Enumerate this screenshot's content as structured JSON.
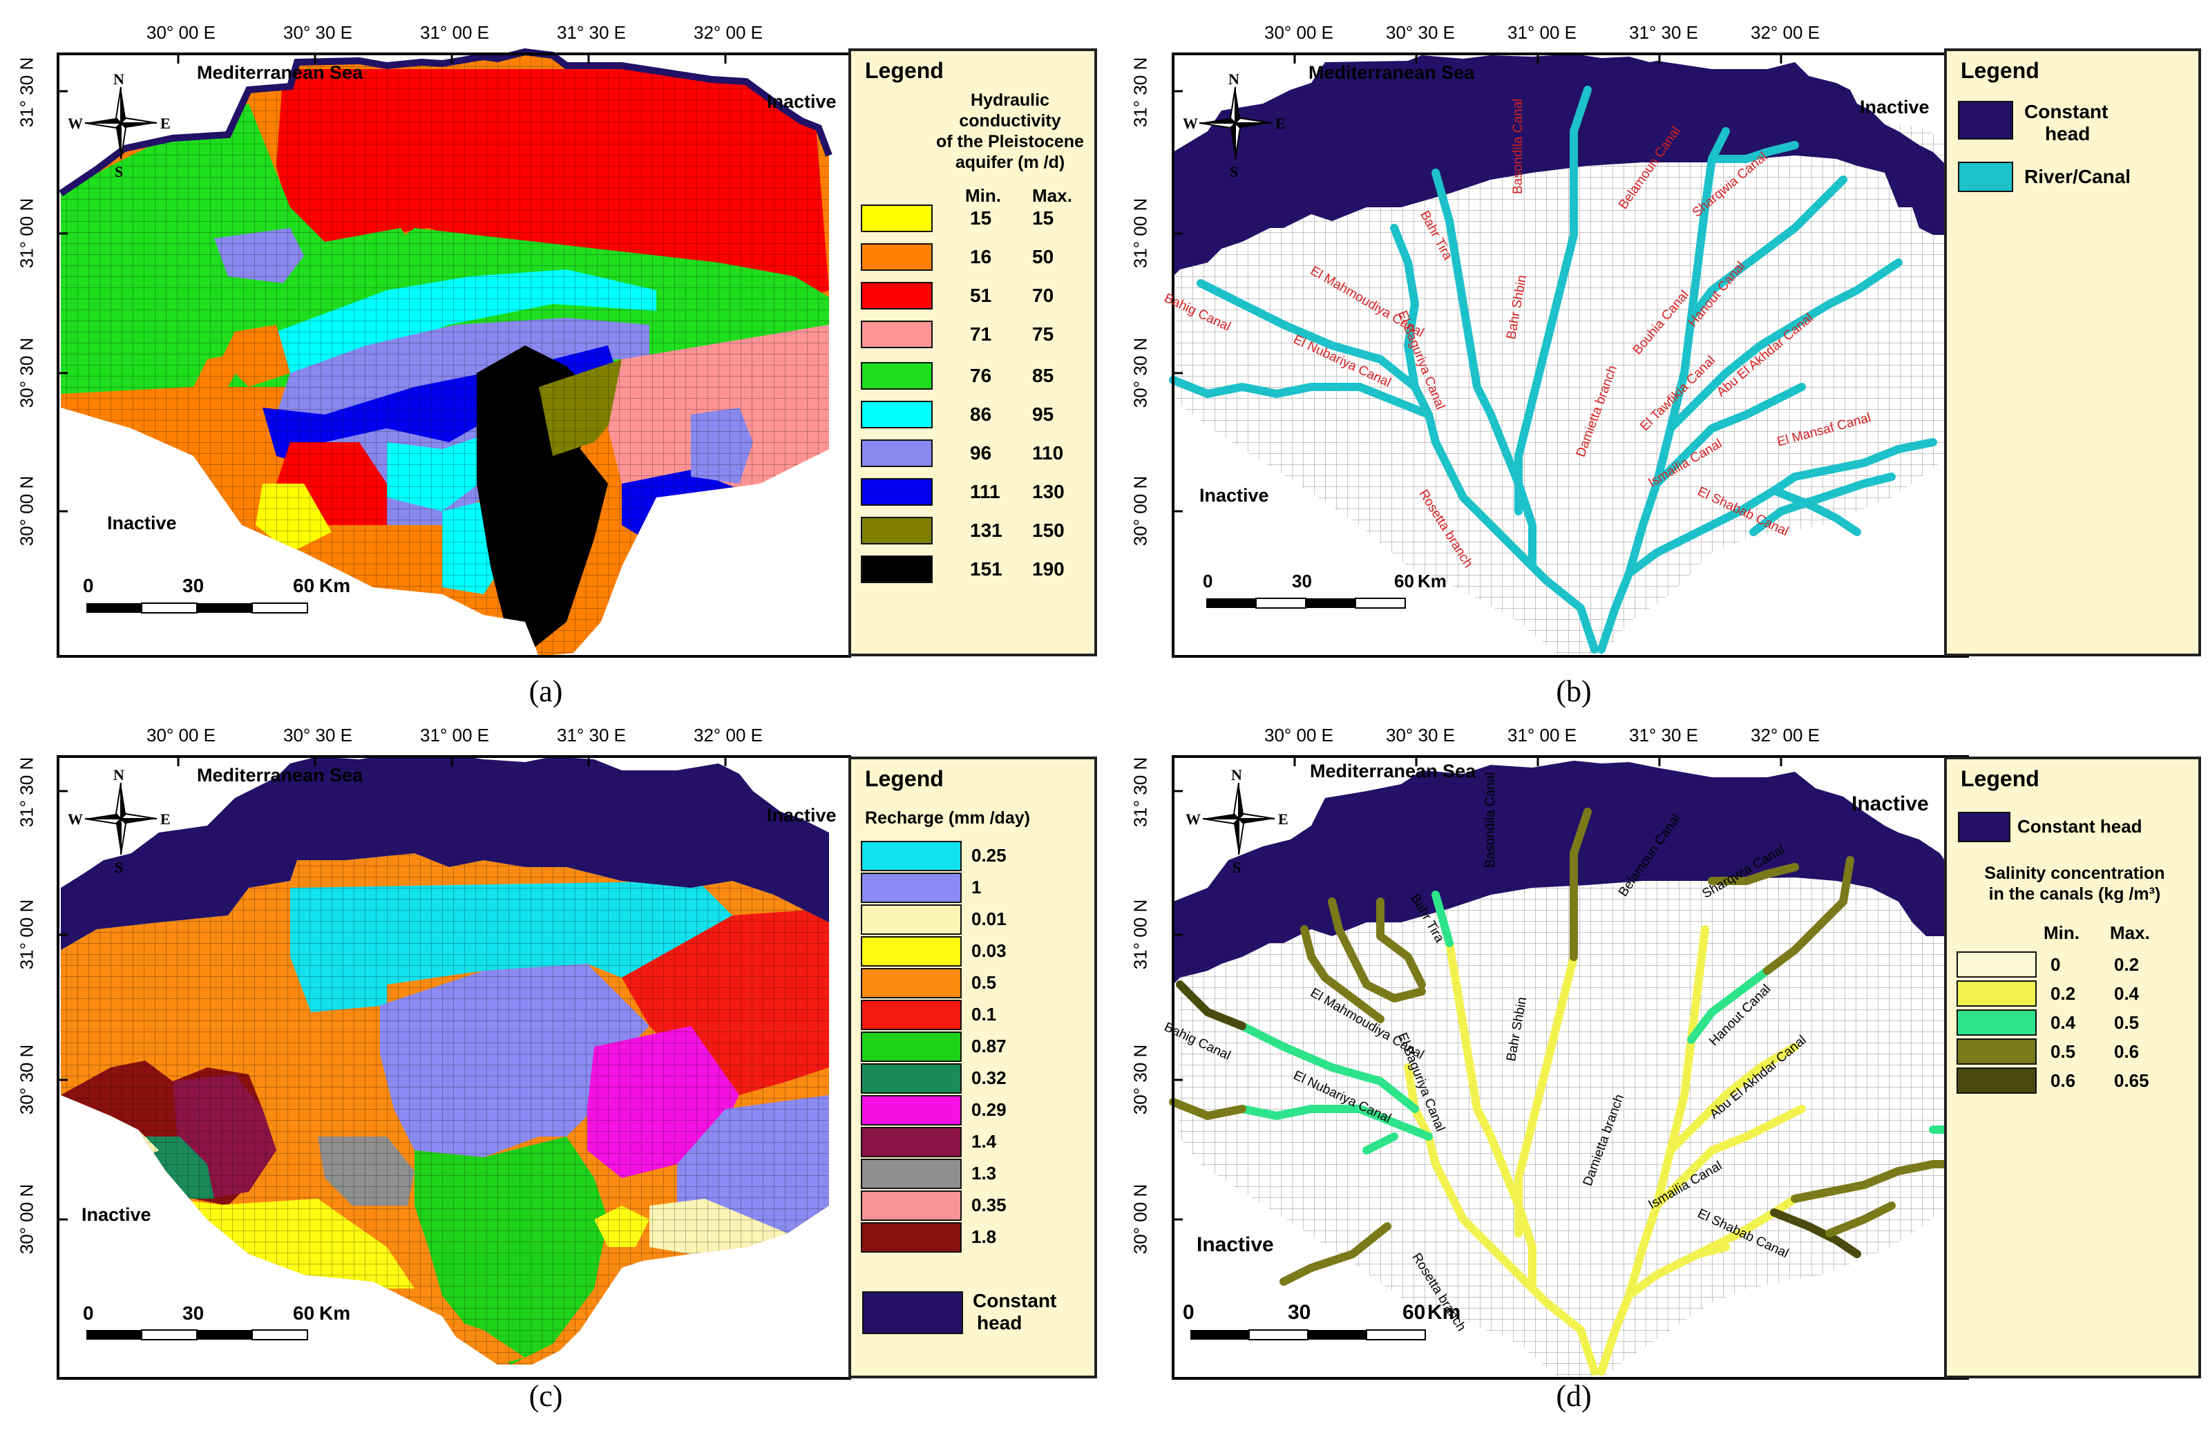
{
  "shared": {
    "lon_ticks": [
      "30° 00 E",
      "30° 30 E",
      "31° 00 E",
      "31° 30 E",
      "32° 00 E"
    ],
    "lat_ticks": [
      "31° 30 N",
      "31° 00 N",
      "30° 30 N",
      "30° 00 N"
    ],
    "sea_label": "Mediterranean Sea",
    "inactive_label": "Inactive",
    "compass": {
      "n": "N",
      "s": "S",
      "e": "E",
      "w": "W"
    },
    "scale": {
      "zero": "0",
      "mid": "30",
      "end": "60",
      "unit": "Km"
    },
    "legend_title": "Legend",
    "min_label": "Min.",
    "max_label": "Max."
  },
  "panels": {
    "a": {
      "caption": "(a)",
      "legend_sub": [
        "Hydraulic conductivity",
        "of the Pleistocene",
        "aquifer (m /d)"
      ],
      "classes": [
        {
          "min": "15",
          "max": "15",
          "color": "#ffff00"
        },
        {
          "min": "16",
          "max": "50",
          "color": "#ff8000"
        },
        {
          "min": "51",
          "max": "70",
          "color": "#ff0000"
        },
        {
          "min": "71",
          "max": "75",
          "color": "#ff9494"
        },
        {
          "min": "76",
          "max": "85",
          "color": "#1ede1e"
        },
        {
          "min": "86",
          "max": "95",
          "color": "#00ffff"
        },
        {
          "min": "96",
          "max": "110",
          "color": "#8888ee"
        },
        {
          "min": "111",
          "max": "130",
          "color": "#0000ee"
        },
        {
          "min": "131",
          "max": "150",
          "color": "#808000"
        },
        {
          "min": "151",
          "max": "190",
          "color": "#000000"
        }
      ]
    },
    "b": {
      "caption": "(b)",
      "legend_items": [
        {
          "label_1": "Constant",
          "label_2": "head",
          "color": "#221166"
        },
        {
          "label_1": "River/Canal",
          "label_2": "",
          "color": "#1cc1c9"
        }
      ],
      "canals": [
        "Bahr Tira",
        "Basondila Canal",
        "Belamoun Canal",
        "Sharqwia Canal",
        "El Mahmoudiya Canal",
        "El Baguriya Canal",
        "Hanout Canal",
        "Bahr Shbin",
        "Bouhia Canal",
        "Abu El Akhdar Canal",
        "Bahig Canal",
        "El Nubariya Canal",
        "El Tawfikia Canal",
        "El Mansaf Canal",
        "Ismailia Canal",
        "Damietta branch",
        "Rosetta branch",
        "El Shabab Canal"
      ]
    },
    "c": {
      "caption": "(c)",
      "legend_sub": [
        "Recharge (mm /day)"
      ],
      "classes": [
        {
          "value": "0.25",
          "color": "#12e2ee"
        },
        {
          "value": "1",
          "color": "#8a8af2"
        },
        {
          "value": "0.01",
          "color": "#fbf4b4"
        },
        {
          "value": "0.03",
          "color": "#fffb12"
        },
        {
          "value": "0.5",
          "color": "#fb8a10"
        },
        {
          "value": "0.1",
          "color": "#f41a12"
        },
        {
          "value": "0.87",
          "color": "#1ed21a"
        },
        {
          "value": "0.32",
          "color": "#1a8a5a"
        },
        {
          "value": "0.29",
          "color": "#f411e2"
        },
        {
          "value": "1.4",
          "color": "#8a1444"
        },
        {
          "value": "1.3",
          "color": "#8f8f8f"
        },
        {
          "value": "0.35",
          "color": "#f89494"
        },
        {
          "value": "1.8",
          "color": "#8a1010"
        }
      ],
      "constant_head": {
        "label_1": "Constant",
        "label_2": "head",
        "color": "#221166"
      }
    },
    "d": {
      "caption": "(d)",
      "constant_head": {
        "label": "Constant head",
        "color": "#221166"
      },
      "legend_sub": [
        "Salinity concentration",
        "in the canals (kg /m³)"
      ],
      "classes": [
        {
          "min": "0",
          "max": "0.2",
          "color": "#fbf9d6"
        },
        {
          "min": "0.2",
          "max": "0.4",
          "color": "#f2f24e"
        },
        {
          "min": "0.4",
          "max": "0.5",
          "color": "#2ee48a"
        },
        {
          "min": "0.5",
          "max": "0.6",
          "color": "#7a7a1a"
        },
        {
          "min": "0.6",
          "max": "0.65",
          "color": "#4a4a0e"
        }
      ],
      "canals": [
        "Bahr Tira",
        "Basondila Canal",
        "Belamoun Canal",
        "Sharqwia Canal",
        "El Mahmoudiya Canal",
        "El Baguriya Canal",
        "Hanout Canal",
        "Bahr Shbin",
        "Abu El Akhdar Canal",
        "Bahig Canal",
        "El Nubariya Canal",
        "Damietta branch",
        "Ismailia Canal",
        "Rosetta branch",
        "El Shabab Canal"
      ]
    }
  }
}
